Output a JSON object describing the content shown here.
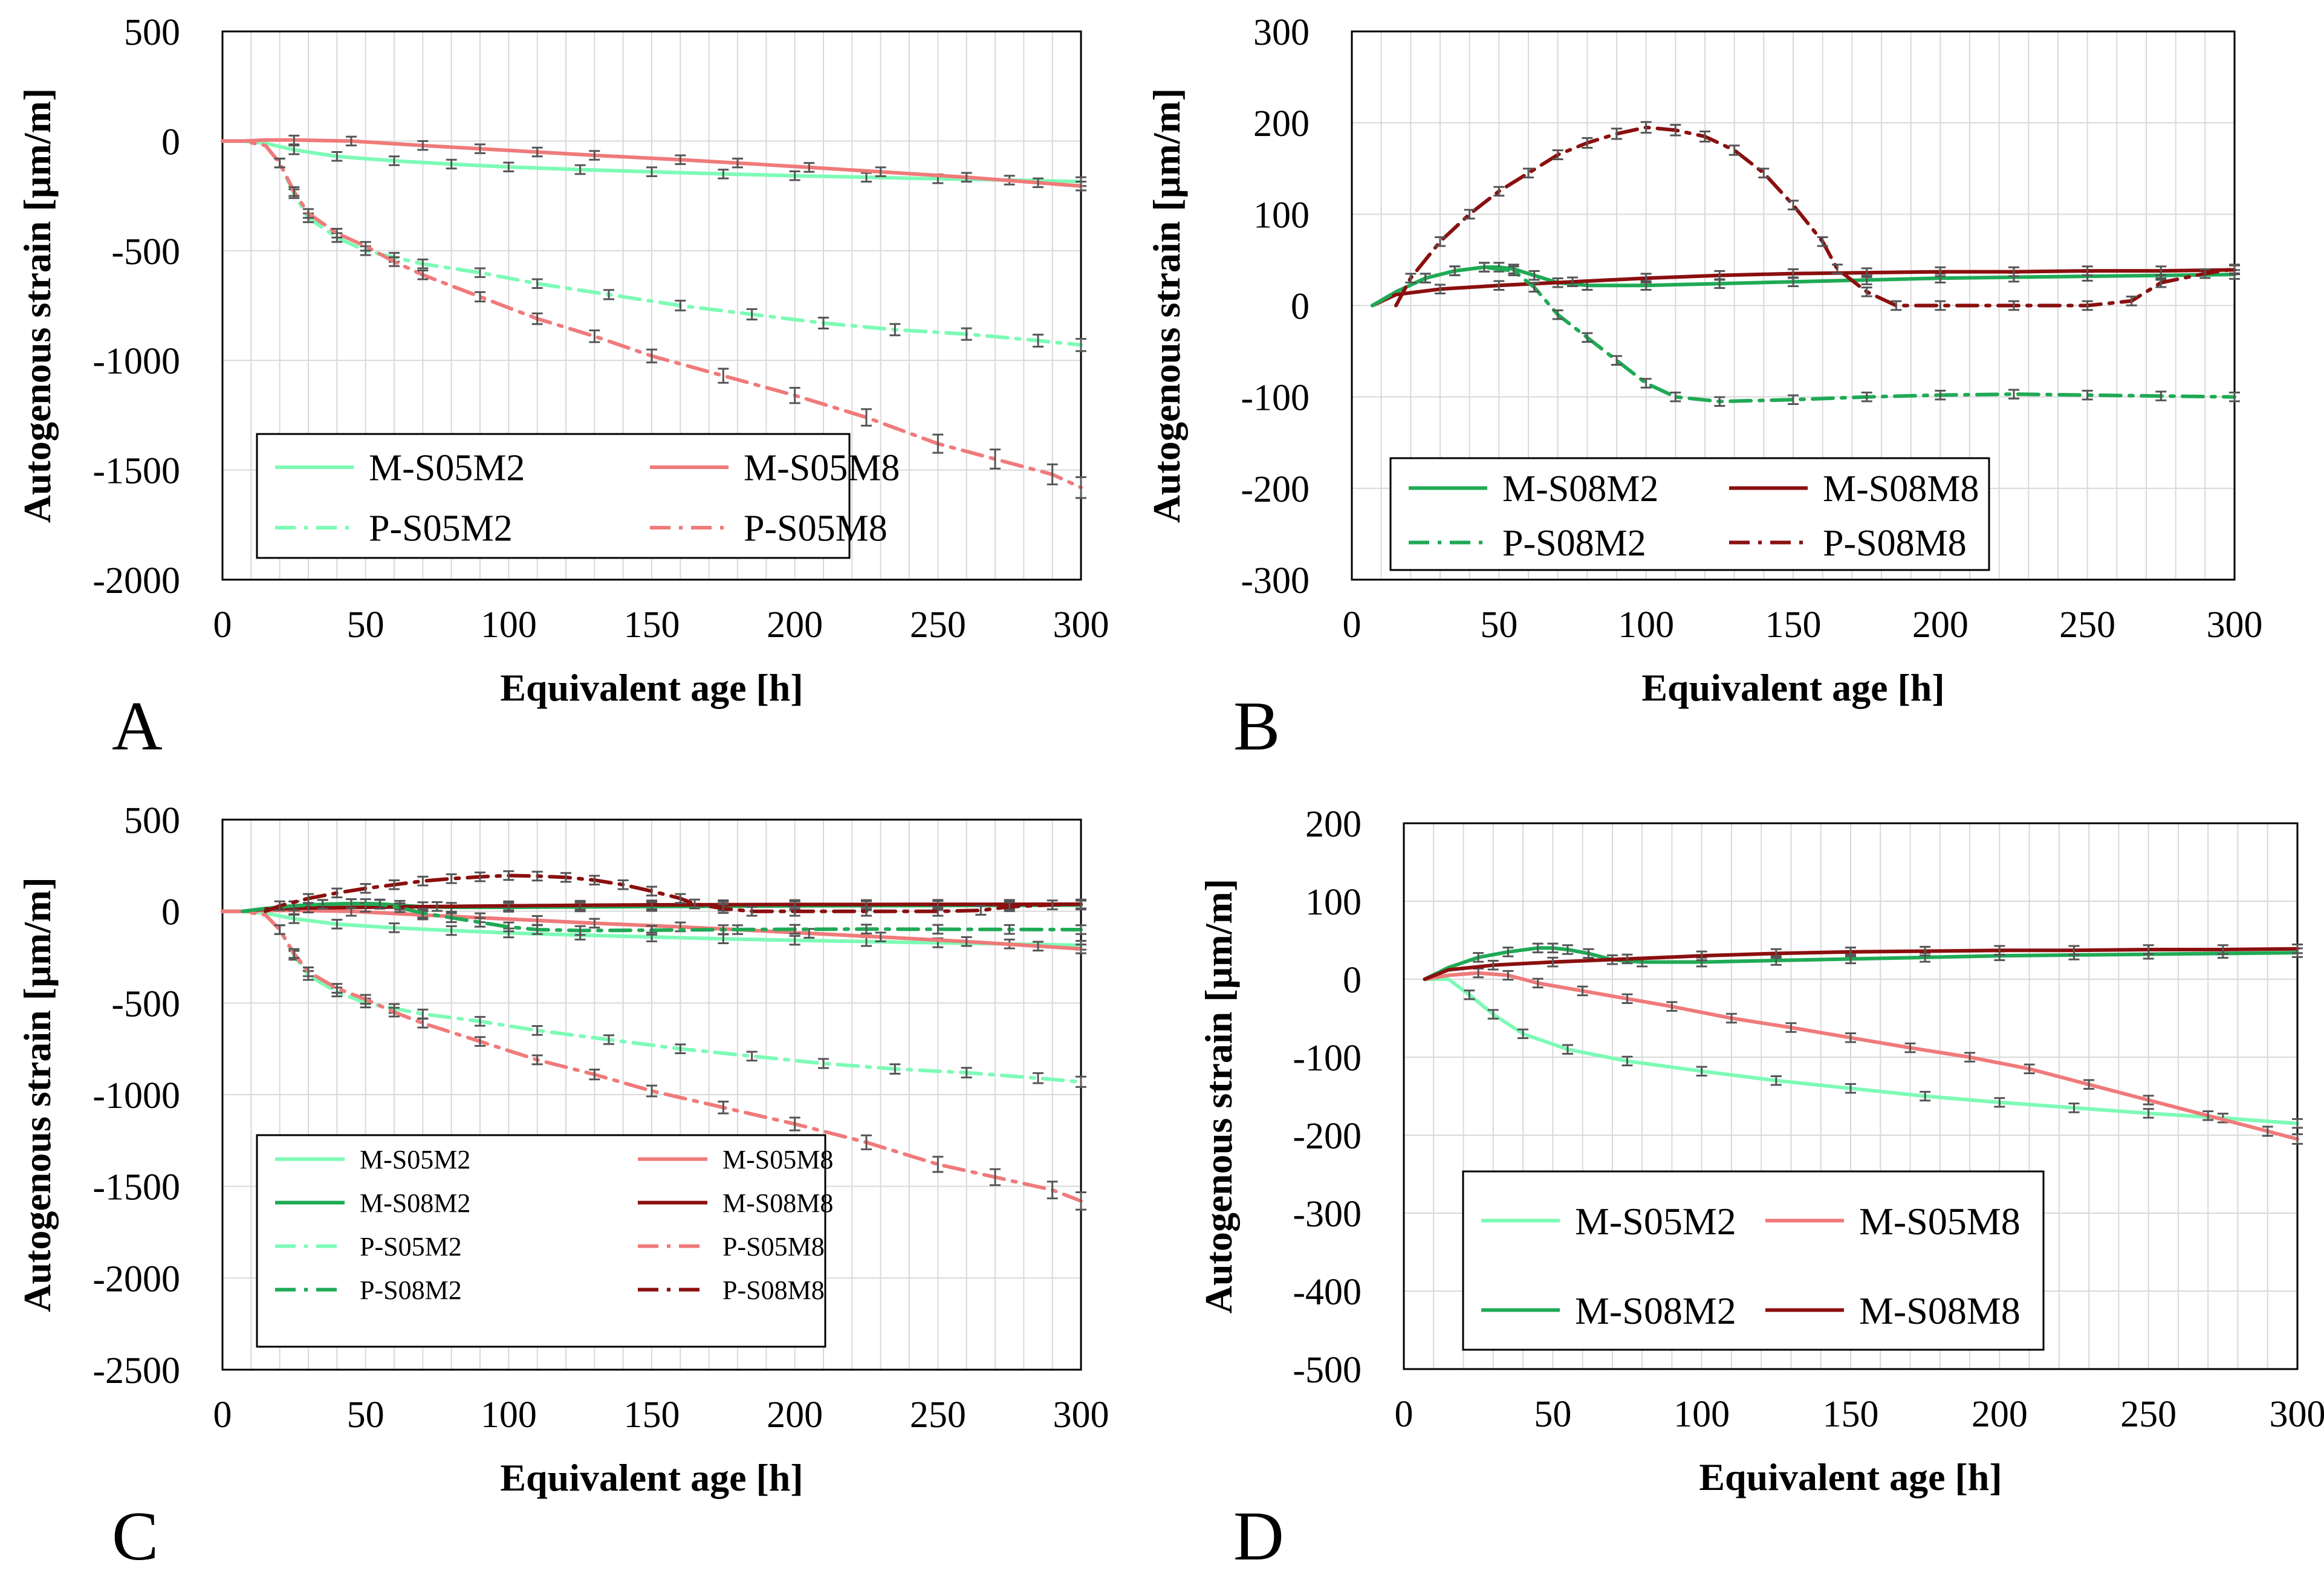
{
  "figure": {
    "panel_letters": [
      "A",
      "B",
      "C",
      "D"
    ]
  },
  "colors": {
    "M-S05M2": "#7dfbb6",
    "M-S05M8": "#f07a7a",
    "M-S08M2": "#1faa55",
    "M-S08M8": "#8b0f0f",
    "P-S05M2": "#7dfbb6",
    "P-S05M8": "#f07a7a",
    "P-S08M2": "#1faa55",
    "P-S08M8": "#8b0f0f",
    "grid": "#d9d9d9",
    "errorbar": "#555555"
  },
  "chart_data": [
    {
      "panel": "A",
      "type": "line",
      "xlabel": "Equivalent age [h]",
      "ylabel": "Autogenous strain [µm/m]",
      "xlim": [
        0,
        300
      ],
      "ylim": [
        -2000,
        500
      ],
      "xticks": [
        0,
        50,
        100,
        150,
        200,
        250,
        300
      ],
      "yticks": [
        500,
        0,
        -500,
        -1000,
        -1500,
        -2000
      ],
      "grid": true,
      "legend": {
        "placement": "bottom-left",
        "columns": 2,
        "order": [
          "M-S05M2",
          "M-S05M8",
          "P-S05M2",
          "P-S05M8"
        ]
      },
      "series": [
        {
          "name": "M-S05M2",
          "style": "solid",
          "x": [
            0,
            7,
            15,
            25,
            40,
            60,
            80,
            100,
            125,
            150,
            175,
            200,
            225,
            250,
            275,
            300
          ],
          "values": [
            0,
            0,
            -10,
            -40,
            -70,
            -90,
            -105,
            -118,
            -130,
            -140,
            -150,
            -158,
            -165,
            -172,
            -178,
            -185
          ]
        },
        {
          "name": "M-S05M8",
          "style": "solid",
          "x": [
            0,
            7,
            15,
            25,
            45,
            70,
            90,
            110,
            130,
            160,
            180,
            205,
            230,
            260,
            285,
            300
          ],
          "values": [
            0,
            0,
            5,
            5,
            0,
            -20,
            -35,
            -50,
            -65,
            -85,
            -100,
            -120,
            -140,
            -165,
            -190,
            -205
          ]
        },
        {
          "name": "P-S05M2",
          "style": "dashdot",
          "x": [
            0,
            7,
            15,
            20,
            25,
            30,
            40,
            50,
            60,
            70,
            90,
            110,
            135,
            160,
            185,
            210,
            235,
            260,
            285,
            300
          ],
          "values": [
            0,
            0,
            -20,
            -100,
            -240,
            -350,
            -440,
            -500,
            -530,
            -560,
            -600,
            -650,
            -700,
            -750,
            -790,
            -830,
            -860,
            -880,
            -910,
            -930
          ]
        },
        {
          "name": "P-S05M8",
          "style": "dashdot",
          "x": [
            0,
            7,
            15,
            20,
            25,
            30,
            40,
            50,
            60,
            70,
            90,
            110,
            130,
            150,
            175,
            200,
            225,
            250,
            270,
            290,
            300
          ],
          "values": [
            0,
            0,
            -20,
            -100,
            -230,
            -330,
            -420,
            -480,
            -550,
            -610,
            -710,
            -810,
            -890,
            -980,
            -1070,
            -1160,
            -1260,
            -1380,
            -1450,
            -1520,
            -1580
          ]
        }
      ]
    },
    {
      "panel": "B",
      "type": "line",
      "xlabel": "Equivalent age [h]",
      "ylabel": "Autogenous strain [µm/m]",
      "xlim": [
        0,
        300
      ],
      "ylim": [
        -300,
        300
      ],
      "xticks": [
        0,
        50,
        100,
        150,
        200,
        250,
        300
      ],
      "yticks": [
        300,
        200,
        100,
        0,
        -100,
        -200,
        -300
      ],
      "grid": true,
      "legend": {
        "placement": "bottom-left",
        "columns": 2,
        "order": [
          "M-S08M2",
          "M-S08M8",
          "P-S08M2",
          "P-S08M8"
        ]
      },
      "series": [
        {
          "name": "M-S08M2",
          "style": "solid",
          "x": [
            7,
            15,
            25,
            35,
            45,
            50,
            55,
            62,
            70,
            80,
            100,
            125,
            150,
            175,
            200,
            225,
            250,
            275,
            300
          ],
          "values": [
            0,
            15,
            30,
            38,
            42,
            42,
            40,
            33,
            25,
            22,
            22,
            24,
            26,
            28,
            30,
            31,
            32,
            33,
            34
          ]
        },
        {
          "name": "M-S08M8",
          "style": "solid",
          "x": [
            7,
            15,
            30,
            50,
            75,
            100,
            125,
            150,
            175,
            200,
            225,
            250,
            275,
            300
          ],
          "values": [
            0,
            12,
            18,
            22,
            26,
            30,
            33,
            35,
            36,
            37,
            37,
            38,
            38,
            39
          ]
        },
        {
          "name": "P-S08M2",
          "style": "dashdot",
          "x": [
            7,
            15,
            25,
            35,
            45,
            55,
            62,
            70,
            80,
            90,
            100,
            110,
            125,
            150,
            175,
            200,
            225,
            250,
            275,
            300
          ],
          "values": [
            0,
            15,
            30,
            38,
            42,
            38,
            20,
            -10,
            -35,
            -60,
            -85,
            -100,
            -105,
            -103,
            -100,
            -98,
            -97,
            -98,
            -99,
            -100
          ]
        },
        {
          "name": "P-S08M8",
          "style": "dashdot",
          "x": [
            15,
            20,
            30,
            40,
            50,
            60,
            70,
            80,
            90,
            100,
            110,
            120,
            130,
            140,
            150,
            160,
            165,
            175,
            185,
            200,
            225,
            250,
            265,
            275,
            290,
            300
          ],
          "values": [
            0,
            30,
            70,
            100,
            125,
            145,
            165,
            178,
            188,
            195,
            192,
            185,
            170,
            145,
            110,
            70,
            40,
            15,
            0,
            0,
            0,
            0,
            5,
            25,
            35,
            40
          ]
        }
      ]
    },
    {
      "panel": "C",
      "type": "line",
      "xlabel": "Equivalent age [h]",
      "ylabel": "Autogenous strain [µm/m]",
      "xlim": [
        0,
        300
      ],
      "ylim": [
        -2500,
        500
      ],
      "xticks": [
        0,
        50,
        100,
        150,
        200,
        250,
        300
      ],
      "yticks": [
        500,
        0,
        -500,
        -1000,
        -1500,
        -2000,
        -2500
      ],
      "grid": true,
      "legend": {
        "placement": "bottom-left",
        "columns": 2,
        "order": [
          "M-S05M2",
          "M-S05M8",
          "M-S08M2",
          "M-S08M8",
          "P-S05M2",
          "P-S05M8",
          "P-S08M2",
          "P-S08M8"
        ]
      },
      "series": [
        {
          "name": "M-S05M2",
          "style": "solid",
          "x": [
            0,
            7,
            15,
            25,
            40,
            60,
            80,
            100,
            125,
            150,
            175,
            200,
            225,
            250,
            275,
            300
          ],
          "values": [
            0,
            0,
            -10,
            -40,
            -70,
            -90,
            -105,
            -118,
            -130,
            -140,
            -150,
            -158,
            -165,
            -172,
            -178,
            -185
          ]
        },
        {
          "name": "M-S05M8",
          "style": "solid",
          "x": [
            0,
            7,
            15,
            25,
            45,
            70,
            90,
            110,
            130,
            160,
            180,
            205,
            230,
            260,
            285,
            300
          ],
          "values": [
            0,
            0,
            5,
            5,
            0,
            -20,
            -35,
            -50,
            -65,
            -85,
            -100,
            -120,
            -140,
            -165,
            -190,
            -205
          ]
        },
        {
          "name": "M-S08M2",
          "style": "solid",
          "x": [
            7,
            15,
            25,
            35,
            45,
            50,
            55,
            62,
            70,
            80,
            100,
            125,
            150,
            175,
            200,
            225,
            250,
            275,
            300
          ],
          "values": [
            0,
            15,
            30,
            38,
            42,
            42,
            40,
            33,
            25,
            22,
            22,
            24,
            26,
            28,
            30,
            31,
            32,
            33,
            34
          ]
        },
        {
          "name": "M-S08M8",
          "style": "solid",
          "x": [
            7,
            15,
            30,
            50,
            75,
            100,
            125,
            150,
            175,
            200,
            225,
            250,
            275,
            300
          ],
          "values": [
            0,
            12,
            18,
            22,
            26,
            30,
            33,
            35,
            36,
            37,
            37,
            38,
            38,
            39
          ]
        },
        {
          "name": "P-S05M2",
          "style": "dashdot",
          "x": [
            0,
            7,
            15,
            20,
            25,
            30,
            40,
            50,
            60,
            70,
            90,
            110,
            135,
            160,
            185,
            210,
            235,
            260,
            285,
            300
          ],
          "values": [
            0,
            0,
            -20,
            -100,
            -240,
            -350,
            -440,
            -500,
            -530,
            -560,
            -600,
            -650,
            -700,
            -750,
            -790,
            -830,
            -860,
            -880,
            -910,
            -930
          ]
        },
        {
          "name": "P-S05M8",
          "style": "dashdot",
          "x": [
            0,
            7,
            15,
            20,
            25,
            30,
            40,
            50,
            60,
            70,
            90,
            110,
            130,
            150,
            175,
            200,
            225,
            250,
            270,
            290,
            300
          ],
          "values": [
            0,
            0,
            -20,
            -100,
            -230,
            -330,
            -420,
            -480,
            -550,
            -610,
            -710,
            -810,
            -890,
            -980,
            -1070,
            -1160,
            -1260,
            -1380,
            -1450,
            -1520,
            -1580
          ]
        },
        {
          "name": "P-S08M2",
          "style": "dashdot",
          "x": [
            7,
            15,
            25,
            35,
            45,
            55,
            62,
            70,
            80,
            90,
            100,
            110,
            125,
            150,
            175,
            200,
            225,
            250,
            275,
            300
          ],
          "values": [
            0,
            15,
            30,
            38,
            42,
            38,
            20,
            -10,
            -35,
            -60,
            -85,
            -100,
            -105,
            -103,
            -100,
            -98,
            -97,
            -98,
            -99,
            -100
          ]
        },
        {
          "name": "P-S08M8",
          "style": "dashdot",
          "x": [
            15,
            20,
            30,
            40,
            50,
            60,
            70,
            80,
            90,
            100,
            110,
            120,
            130,
            140,
            150,
            160,
            165,
            175,
            185,
            200,
            225,
            250,
            265,
            275,
            290,
            300
          ],
          "values": [
            0,
            30,
            70,
            100,
            125,
            145,
            165,
            178,
            188,
            195,
            192,
            185,
            170,
            145,
            110,
            70,
            40,
            15,
            0,
            0,
            0,
            0,
            5,
            25,
            35,
            40
          ]
        }
      ]
    },
    {
      "panel": "D",
      "type": "line",
      "xlabel": "Equivalent age [h]",
      "ylabel": "Autogenous strain [µm/m]",
      "xlim": [
        0,
        300
      ],
      "ylim": [
        -500,
        200
      ],
      "xticks": [
        0,
        50,
        100,
        150,
        200,
        250,
        300
      ],
      "yticks": [
        200,
        100,
        0,
        -100,
        -200,
        -300,
        -400,
        -500
      ],
      "grid": true,
      "legend": {
        "placement": "bottom-left",
        "columns": 2,
        "order": [
          "M-S05M2",
          "M-S05M8",
          "M-S08M2",
          "M-S08M8"
        ]
      },
      "series": [
        {
          "name": "M-S05M2",
          "style": "solid",
          "x": [
            7,
            15,
            22,
            30,
            40,
            55,
            75,
            100,
            125,
            150,
            175,
            200,
            225,
            250,
            275,
            300
          ],
          "values": [
            0,
            0,
            -20,
            -45,
            -70,
            -90,
            -105,
            -118,
            -130,
            -140,
            -150,
            -158,
            -165,
            -172,
            -178,
            -185
          ]
        },
        {
          "name": "M-S05M8",
          "style": "solid",
          "x": [
            7,
            15,
            25,
            35,
            45,
            60,
            75,
            90,
            110,
            130,
            150,
            170,
            190,
            210,
            230,
            250,
            270,
            290,
            300
          ],
          "values": [
            0,
            5,
            8,
            5,
            -5,
            -15,
            -25,
            -35,
            -50,
            -62,
            -75,
            -88,
            -100,
            -115,
            -135,
            -155,
            -175,
            -195,
            -205
          ]
        },
        {
          "name": "M-S08M2",
          "style": "solid",
          "x": [
            7,
            15,
            25,
            35,
            45,
            50,
            55,
            62,
            70,
            80,
            100,
            125,
            150,
            175,
            200,
            225,
            250,
            275,
            300
          ],
          "values": [
            0,
            15,
            28,
            35,
            40,
            40,
            38,
            33,
            25,
            22,
            22,
            24,
            26,
            28,
            30,
            31,
            32,
            33,
            34
          ]
        },
        {
          "name": "M-S08M8",
          "style": "solid",
          "x": [
            7,
            15,
            30,
            50,
            75,
            100,
            125,
            150,
            175,
            200,
            225,
            250,
            275,
            300
          ],
          "values": [
            0,
            12,
            18,
            22,
            26,
            30,
            33,
            35,
            36,
            37,
            37,
            38,
            38,
            39
          ]
        }
      ]
    }
  ]
}
